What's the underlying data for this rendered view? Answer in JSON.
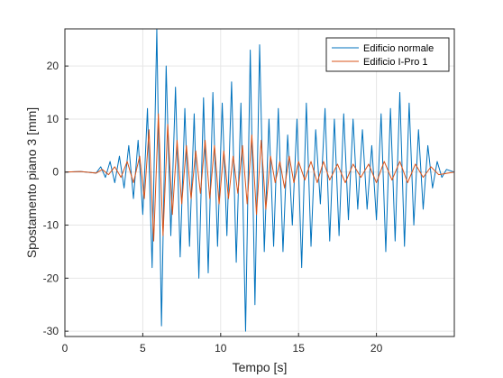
{
  "chart_data": {
    "type": "line",
    "xlabel": "Tempo [s]",
    "ylabel": "Spostamento piano 3 [mm]",
    "xlim": [
      0,
      25
    ],
    "ylim": [
      -31,
      27
    ],
    "xticks": [
      0,
      5,
      10,
      15,
      20
    ],
    "yticks": [
      -30,
      -20,
      -10,
      0,
      10,
      20
    ],
    "grid": true,
    "legend_position": "top-right",
    "colors": {
      "background": "#ffffff",
      "axis": "#262626",
      "grid": "#e6e6e6"
    },
    "series": [
      {
        "name": "Edificio normale",
        "color": "#0072BD",
        "x": [
          0,
          1,
          2,
          2.3,
          2.6,
          2.9,
          3.2,
          3.5,
          3.8,
          4.1,
          4.4,
          4.7,
          5.0,
          5.3,
          5.6,
          5.9,
          6.2,
          6.5,
          6.8,
          7.1,
          7.4,
          7.7,
          8.0,
          8.3,
          8.6,
          8.9,
          9.2,
          9.5,
          9.8,
          10.1,
          10.4,
          10.7,
          11.0,
          11.3,
          11.6,
          11.9,
          12.2,
          12.5,
          12.8,
          13.1,
          13.4,
          13.7,
          14.0,
          14.3,
          14.6,
          14.9,
          15.2,
          15.5,
          15.8,
          16.1,
          16.4,
          16.7,
          17.0,
          17.3,
          17.6,
          17.9,
          18.2,
          18.5,
          18.8,
          19.1,
          19.4,
          19.7,
          20.0,
          20.3,
          20.6,
          20.9,
          21.2,
          21.5,
          21.8,
          22.1,
          22.4,
          22.7,
          23.0,
          23.3,
          23.6,
          23.9,
          24.2,
          24.5,
          25.0
        ],
        "y": [
          0,
          0.1,
          -0.2,
          1,
          -1,
          2,
          -2,
          3,
          -3,
          5,
          -5,
          6,
          -8,
          12,
          -18,
          27,
          -29,
          20,
          -12,
          16,
          -16,
          12,
          -14,
          11,
          -20,
          14,
          -19,
          15,
          -14,
          13,
          -12,
          17,
          -17,
          13,
          -30,
          23,
          -25,
          24,
          -15,
          10,
          -14,
          12,
          -15,
          7,
          -10,
          10,
          -18,
          13,
          -14,
          8,
          -6,
          12,
          -13,
          10,
          -12,
          11,
          -9,
          10,
          -7,
          8,
          -7,
          5,
          -9,
          11,
          -15,
          12,
          -13,
          15,
          -14,
          13,
          -10,
          8,
          -7,
          5,
          -3,
          2,
          -1,
          0.5,
          0
        ]
      },
      {
        "name": "Edificio I-Pro 1",
        "color": "#D95319",
        "x": [
          0,
          1,
          2,
          2.4,
          2.8,
          3.2,
          3.6,
          4.0,
          4.4,
          4.8,
          5.1,
          5.4,
          5.7,
          6.0,
          6.3,
          6.6,
          6.9,
          7.2,
          7.5,
          7.8,
          8.1,
          8.4,
          8.7,
          9.0,
          9.3,
          9.6,
          9.9,
          10.2,
          10.5,
          10.8,
          11.1,
          11.4,
          11.7,
          12.0,
          12.3,
          12.6,
          12.9,
          13.2,
          13.5,
          13.8,
          14.1,
          14.4,
          14.7,
          15.0,
          15.4,
          15.8,
          16.2,
          16.6,
          17.0,
          17.5,
          18.0,
          18.5,
          19.0,
          19.5,
          20.0,
          20.5,
          21.0,
          21.5,
          22.0,
          22.5,
          23.0,
          23.5,
          24.0,
          25.0
        ],
        "y": [
          0,
          0.1,
          -0.2,
          0.5,
          -0.5,
          1,
          -1,
          2,
          -2,
          3,
          -5,
          8,
          -13,
          11,
          -12,
          9,
          -8,
          6,
          -6,
          5,
          -5,
          4,
          -4,
          6,
          -5,
          5,
          -6,
          4,
          -5,
          3,
          -4,
          5,
          -6,
          7,
          -8,
          6,
          -7,
          3,
          -2,
          2,
          -3,
          3,
          -2,
          2,
          -1.5,
          2,
          -2,
          2,
          -1.5,
          1.5,
          -2,
          1.5,
          -1,
          1.5,
          -2,
          2,
          -1.5,
          2,
          -2,
          1.5,
          -1,
          1,
          -0.5,
          0
        ]
      }
    ]
  }
}
